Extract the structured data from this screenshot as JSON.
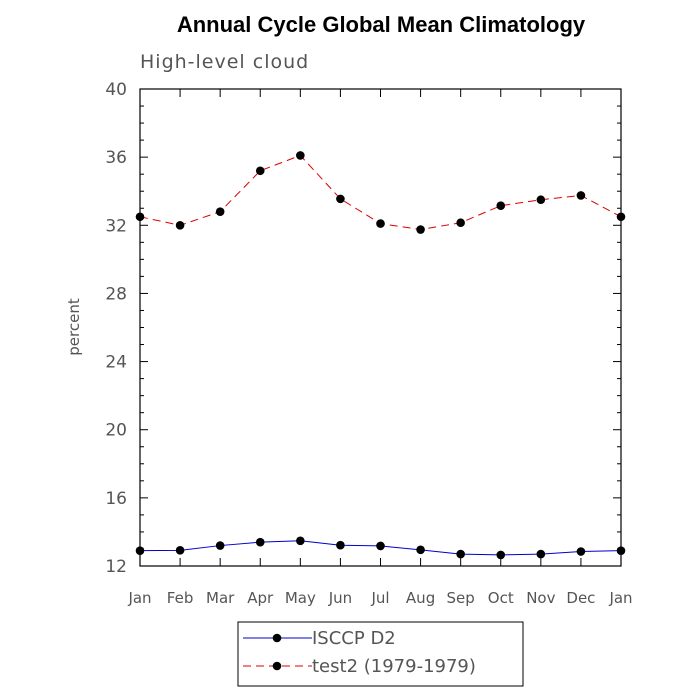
{
  "chart_data": {
    "type": "line",
    "title": "Annual Cycle Global Mean Climatology",
    "subtitle": "High-level cloud",
    "xlabel": "",
    "ylabel": "percent",
    "categories": [
      "Jan",
      "Feb",
      "Mar",
      "Apr",
      "May",
      "Jun",
      "Jul",
      "Aug",
      "Sep",
      "Oct",
      "Nov",
      "Dec",
      "Jan"
    ],
    "ylim": [
      12,
      40
    ],
    "yticks": [
      12,
      16,
      20,
      24,
      28,
      32,
      36,
      40
    ],
    "grid": false,
    "legend_position": "bottom-center",
    "series": [
      {
        "name": "ISCCP D2",
        "color": "#0000cc",
        "line_style": "solid",
        "marker": "circle",
        "values": [
          12.9,
          12.92,
          13.2,
          13.4,
          13.48,
          13.22,
          13.18,
          12.95,
          12.7,
          12.65,
          12.7,
          12.85,
          12.9
        ]
      },
      {
        "name": "test2 (1979-1979)",
        "color": "#dd0000",
        "line_style": "dashed",
        "marker": "circle",
        "values": [
          32.5,
          32.0,
          32.8,
          35.2,
          36.1,
          33.55,
          32.1,
          31.75,
          32.15,
          33.15,
          33.5,
          33.75,
          32.5
        ]
      }
    ]
  }
}
